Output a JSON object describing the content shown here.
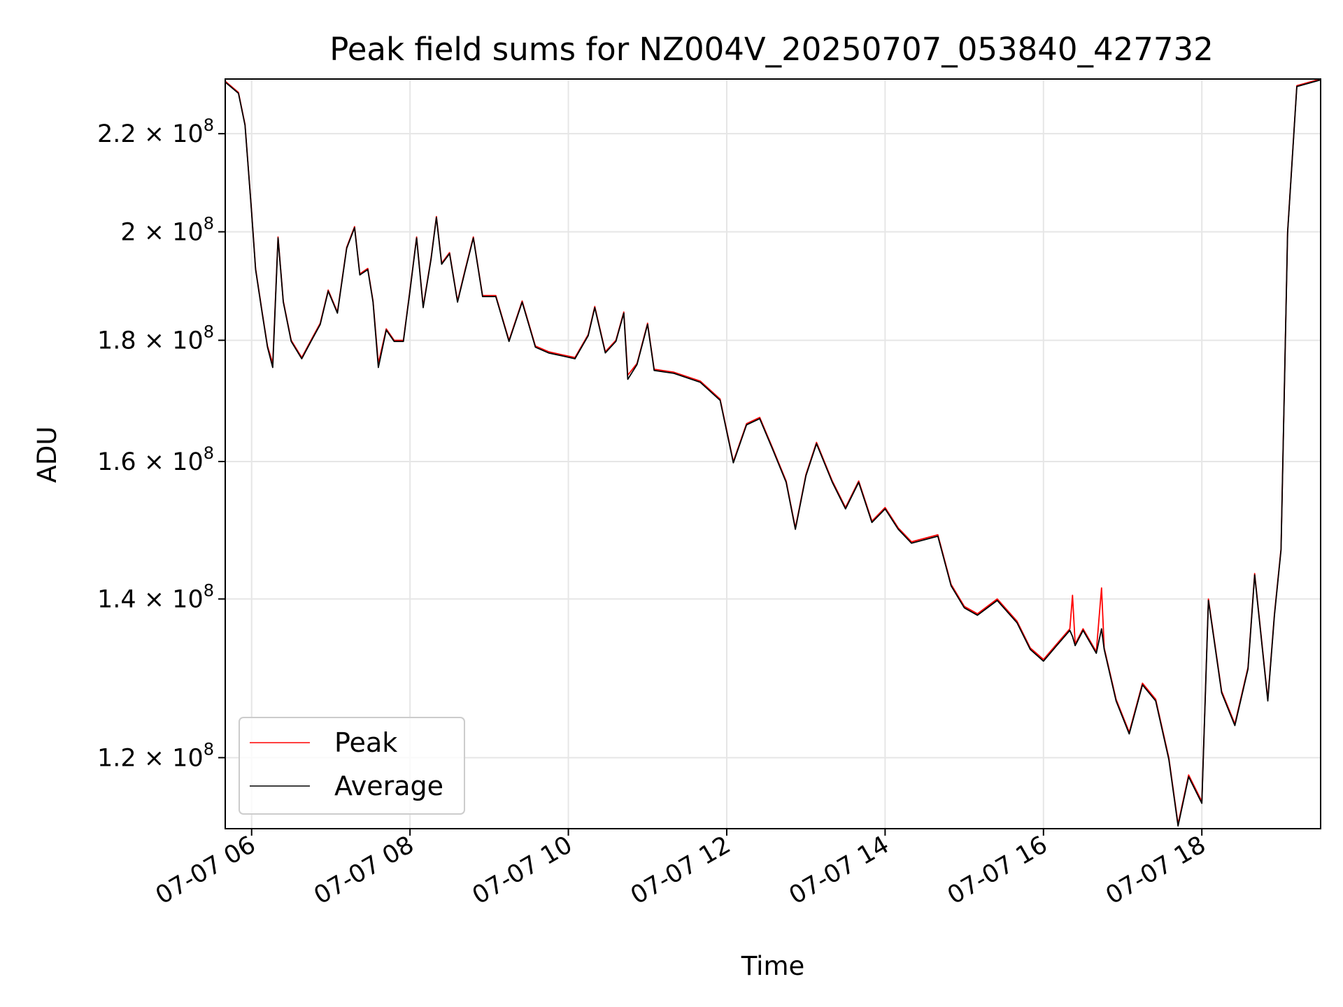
{
  "chart_data": {
    "type": "line",
    "title": "Peak field sums for NZ004V_20250707_053840_427732",
    "xlabel": "Time",
    "ylabel": "ADU",
    "y_scale": "log",
    "xlim": [
      "2025-07-07 05:40",
      "2025-07-07 19:30"
    ],
    "ylim": [
      112000000,
      232000000
    ],
    "x_ticks": [
      {
        "value": "2025-07-07 06:00",
        "label": "07-07 06"
      },
      {
        "value": "2025-07-07 08:00",
        "label": "07-07 08"
      },
      {
        "value": "2025-07-07 10:00",
        "label": "07-07 10"
      },
      {
        "value": "2025-07-07 12:00",
        "label": "07-07 12"
      },
      {
        "value": "2025-07-07 14:00",
        "label": "07-07 14"
      },
      {
        "value": "2025-07-07 16:00",
        "label": "07-07 16"
      },
      {
        "value": "2025-07-07 18:00",
        "label": "07-07 18"
      }
    ],
    "y_ticks": [
      {
        "value": 120000000,
        "mantissa": "1.2",
        "base": "10",
        "exp": "8"
      },
      {
        "value": 140000000,
        "mantissa": "1.4",
        "base": "10",
        "exp": "8"
      },
      {
        "value": 160000000,
        "mantissa": "1.6",
        "base": "10",
        "exp": "8"
      },
      {
        "value": 180000000,
        "mantissa": "1.8",
        "base": "10",
        "exp": "8"
      },
      {
        "value": 200000000,
        "mantissa": "2",
        "base": "10",
        "exp": "8"
      },
      {
        "value": 220000000,
        "mantissa": "2.2",
        "base": "10",
        "exp": "8"
      }
    ],
    "grid": true,
    "legend_position": "lower-left",
    "series": [
      {
        "name": "Peak",
        "color": "#ff0000",
        "points": [
          [
            "2025-07-07 05:40",
            231500000
          ],
          [
            "2025-07-07 05:50",
            229000000
          ],
          [
            "2025-07-07 05:55",
            222000000
          ],
          [
            "2025-07-07 06:00",
            204000000
          ],
          [
            "2025-07-07 06:03",
            193000000
          ],
          [
            "2025-07-07 06:08",
            185000000
          ],
          [
            "2025-07-07 06:12",
            179000000
          ],
          [
            "2025-07-07 06:16",
            176000000
          ],
          [
            "2025-07-07 06:20",
            199000000
          ],
          [
            "2025-07-07 06:24",
            187000000
          ],
          [
            "2025-07-07 06:30",
            180000000
          ],
          [
            "2025-07-07 06:38",
            177000000
          ],
          [
            "2025-07-07 06:45",
            180000000
          ],
          [
            "2025-07-07 06:52",
            183000000
          ],
          [
            "2025-07-07 06:58",
            189000000
          ],
          [
            "2025-07-07 07:05",
            185000000
          ],
          [
            "2025-07-07 07:12",
            197000000
          ],
          [
            "2025-07-07 07:18",
            201000000
          ],
          [
            "2025-07-07 07:22",
            192000000
          ],
          [
            "2025-07-07 07:28",
            193000000
          ],
          [
            "2025-07-07 07:32",
            187000000
          ],
          [
            "2025-07-07 07:36",
            176000000
          ],
          [
            "2025-07-07 07:42",
            182000000
          ],
          [
            "2025-07-07 07:48",
            180000000
          ],
          [
            "2025-07-07 07:55",
            180000000
          ],
          [
            "2025-07-07 08:00",
            189000000
          ],
          [
            "2025-07-07 08:05",
            199000000
          ],
          [
            "2025-07-07 08:10",
            186000000
          ],
          [
            "2025-07-07 08:16",
            195000000
          ],
          [
            "2025-07-07 08:20",
            203000000
          ],
          [
            "2025-07-07 08:24",
            194000000
          ],
          [
            "2025-07-07 08:30",
            196000000
          ],
          [
            "2025-07-07 08:36",
            187000000
          ],
          [
            "2025-07-07 08:42",
            193000000
          ],
          [
            "2025-07-07 08:48",
            199000000
          ],
          [
            "2025-07-07 08:55",
            188000000
          ],
          [
            "2025-07-07 09:05",
            188000000
          ],
          [
            "2025-07-07 09:15",
            180000000
          ],
          [
            "2025-07-07 09:25",
            187000000
          ],
          [
            "2025-07-07 09:35",
            179000000
          ],
          [
            "2025-07-07 09:45",
            178000000
          ],
          [
            "2025-07-07 09:55",
            177500000
          ],
          [
            "2025-07-07 10:05",
            177000000
          ],
          [
            "2025-07-07 10:15",
            181000000
          ],
          [
            "2025-07-07 10:20",
            186000000
          ],
          [
            "2025-07-07 10:28",
            178000000
          ],
          [
            "2025-07-07 10:36",
            180000000
          ],
          [
            "2025-07-07 10:42",
            185000000
          ],
          [
            "2025-07-07 10:45",
            174000000
          ],
          [
            "2025-07-07 10:52",
            176000000
          ],
          [
            "2025-07-07 11:00",
            183000000
          ],
          [
            "2025-07-07 11:05",
            175000000
          ],
          [
            "2025-07-07 11:20",
            174500000
          ],
          [
            "2025-07-07 11:40",
            173000000
          ],
          [
            "2025-07-07 11:55",
            170000000
          ],
          [
            "2025-07-07 12:05",
            160000000
          ],
          [
            "2025-07-07 12:15",
            166000000
          ],
          [
            "2025-07-07 12:25",
            167000000
          ],
          [
            "2025-07-07 12:35",
            162000000
          ],
          [
            "2025-07-07 12:45",
            157000000
          ],
          [
            "2025-07-07 12:52",
            150000000
          ],
          [
            "2025-07-07 13:00",
            158000000
          ],
          [
            "2025-07-07 13:08",
            163000000
          ],
          [
            "2025-07-07 13:20",
            157000000
          ],
          [
            "2025-07-07 13:30",
            153000000
          ],
          [
            "2025-07-07 13:40",
            157000000
          ],
          [
            "2025-07-07 13:50",
            151000000
          ],
          [
            "2025-07-07 14:00",
            153000000
          ],
          [
            "2025-07-07 14:10",
            150000000
          ],
          [
            "2025-07-07 14:20",
            148000000
          ],
          [
            "2025-07-07 14:30",
            148500000
          ],
          [
            "2025-07-07 14:40",
            149000000
          ],
          [
            "2025-07-07 14:50",
            142000000
          ],
          [
            "2025-07-07 15:00",
            139000000
          ],
          [
            "2025-07-07 15:10",
            138000000
          ],
          [
            "2025-07-07 15:25",
            140000000
          ],
          [
            "2025-07-07 15:40",
            137000000
          ],
          [
            "2025-07-07 15:50",
            133500000
          ],
          [
            "2025-07-07 16:00",
            132000000
          ],
          [
            "2025-07-07 16:10",
            134000000
          ],
          [
            "2025-07-07 16:20",
            136000000
          ],
          [
            "2025-07-07 16:22",
            140500000
          ],
          [
            "2025-07-07 16:24",
            134000000
          ],
          [
            "2025-07-07 16:30",
            136000000
          ],
          [
            "2025-07-07 16:40",
            133000000
          ],
          [
            "2025-07-07 16:44",
            141500000
          ],
          [
            "2025-07-07 16:46",
            133500000
          ],
          [
            "2025-07-07 16:55",
            127000000
          ],
          [
            "2025-07-07 17:05",
            123000000
          ],
          [
            "2025-07-07 17:15",
            129000000
          ],
          [
            "2025-07-07 17:25",
            127000000
          ],
          [
            "2025-07-07 17:35",
            120000000
          ],
          [
            "2025-07-07 17:42",
            112500000
          ],
          [
            "2025-07-07 17:50",
            118000000
          ],
          [
            "2025-07-07 18:00",
            115000000
          ],
          [
            "2025-07-07 18:05",
            140000000
          ],
          [
            "2025-07-07 18:15",
            128000000
          ],
          [
            "2025-07-07 18:25",
            124000000
          ],
          [
            "2025-07-07 18:35",
            131000000
          ],
          [
            "2025-07-07 18:40",
            143500000
          ],
          [
            "2025-07-07 18:50",
            127000000
          ],
          [
            "2025-07-07 18:55",
            138000000
          ],
          [
            "2025-07-07 19:00",
            147000000
          ],
          [
            "2025-07-07 19:05",
            200000000
          ],
          [
            "2025-07-07 19:12",
            230500000
          ],
          [
            "2025-07-07 19:30",
            232000000
          ]
        ]
      },
      {
        "name": "Average",
        "color": "#000000",
        "points": [
          [
            "2025-07-07 05:40",
            231300000
          ],
          [
            "2025-07-07 05:50",
            228800000
          ],
          [
            "2025-07-07 05:55",
            221800000
          ],
          [
            "2025-07-07 06:00",
            203800000
          ],
          [
            "2025-07-07 06:03",
            192800000
          ],
          [
            "2025-07-07 06:08",
            184800000
          ],
          [
            "2025-07-07 06:12",
            178800000
          ],
          [
            "2025-07-07 06:16",
            175300000
          ],
          [
            "2025-07-07 06:20",
            198800000
          ],
          [
            "2025-07-07 06:24",
            186800000
          ],
          [
            "2025-07-07 06:30",
            179800000
          ],
          [
            "2025-07-07 06:38",
            176800000
          ],
          [
            "2025-07-07 06:45",
            179800000
          ],
          [
            "2025-07-07 06:52",
            182800000
          ],
          [
            "2025-07-07 06:58",
            188800000
          ],
          [
            "2025-07-07 07:05",
            184800000
          ],
          [
            "2025-07-07 07:12",
            196800000
          ],
          [
            "2025-07-07 07:18",
            200800000
          ],
          [
            "2025-07-07 07:22",
            191800000
          ],
          [
            "2025-07-07 07:28",
            192800000
          ],
          [
            "2025-07-07 07:32",
            186800000
          ],
          [
            "2025-07-07 07:36",
            175300000
          ],
          [
            "2025-07-07 07:42",
            181800000
          ],
          [
            "2025-07-07 07:48",
            179800000
          ],
          [
            "2025-07-07 07:55",
            179800000
          ],
          [
            "2025-07-07 08:00",
            188800000
          ],
          [
            "2025-07-07 08:05",
            198800000
          ],
          [
            "2025-07-07 08:10",
            185800000
          ],
          [
            "2025-07-07 08:16",
            194800000
          ],
          [
            "2025-07-07 08:20",
            202800000
          ],
          [
            "2025-07-07 08:24",
            193800000
          ],
          [
            "2025-07-07 08:30",
            195800000
          ],
          [
            "2025-07-07 08:36",
            186800000
          ],
          [
            "2025-07-07 08:42",
            192800000
          ],
          [
            "2025-07-07 08:48",
            198800000
          ],
          [
            "2025-07-07 08:55",
            187800000
          ],
          [
            "2025-07-07 09:05",
            187800000
          ],
          [
            "2025-07-07 09:15",
            179800000
          ],
          [
            "2025-07-07 09:25",
            186800000
          ],
          [
            "2025-07-07 09:35",
            178800000
          ],
          [
            "2025-07-07 09:45",
            177800000
          ],
          [
            "2025-07-07 09:55",
            177300000
          ],
          [
            "2025-07-07 10:05",
            176800000
          ],
          [
            "2025-07-07 10:15",
            180800000
          ],
          [
            "2025-07-07 10:20",
            185800000
          ],
          [
            "2025-07-07 10:28",
            177800000
          ],
          [
            "2025-07-07 10:36",
            179800000
          ],
          [
            "2025-07-07 10:42",
            184800000
          ],
          [
            "2025-07-07 10:45",
            173300000
          ],
          [
            "2025-07-07 10:52",
            175800000
          ],
          [
            "2025-07-07 11:00",
            182800000
          ],
          [
            "2025-07-07 11:05",
            174800000
          ],
          [
            "2025-07-07 11:20",
            174300000
          ],
          [
            "2025-07-07 11:40",
            172800000
          ],
          [
            "2025-07-07 11:55",
            169800000
          ],
          [
            "2025-07-07 12:05",
            159800000
          ],
          [
            "2025-07-07 12:15",
            165800000
          ],
          [
            "2025-07-07 12:25",
            166800000
          ],
          [
            "2025-07-07 12:35",
            161800000
          ],
          [
            "2025-07-07 12:45",
            156800000
          ],
          [
            "2025-07-07 12:52",
            149800000
          ],
          [
            "2025-07-07 13:00",
            157800000
          ],
          [
            "2025-07-07 13:08",
            162800000
          ],
          [
            "2025-07-07 13:20",
            156800000
          ],
          [
            "2025-07-07 13:30",
            152800000
          ],
          [
            "2025-07-07 13:40",
            156800000
          ],
          [
            "2025-07-07 13:50",
            150800000
          ],
          [
            "2025-07-07 14:00",
            152800000
          ],
          [
            "2025-07-07 14:10",
            149800000
          ],
          [
            "2025-07-07 14:20",
            147800000
          ],
          [
            "2025-07-07 14:30",
            148300000
          ],
          [
            "2025-07-07 14:40",
            148800000
          ],
          [
            "2025-07-07 14:50",
            141800000
          ],
          [
            "2025-07-07 15:00",
            138800000
          ],
          [
            "2025-07-07 15:10",
            137800000
          ],
          [
            "2025-07-07 15:25",
            139800000
          ],
          [
            "2025-07-07 15:40",
            136800000
          ],
          [
            "2025-07-07 15:50",
            133300000
          ],
          [
            "2025-07-07 16:00",
            131800000
          ],
          [
            "2025-07-07 16:10",
            133800000
          ],
          [
            "2025-07-07 16:20",
            135800000
          ],
          [
            "2025-07-07 16:22",
            135000000
          ],
          [
            "2025-07-07 16:24",
            133800000
          ],
          [
            "2025-07-07 16:30",
            135800000
          ],
          [
            "2025-07-07 16:40",
            132800000
          ],
          [
            "2025-07-07 16:44",
            136000000
          ],
          [
            "2025-07-07 16:46",
            133300000
          ],
          [
            "2025-07-07 16:55",
            126800000
          ],
          [
            "2025-07-07 17:05",
            122800000
          ],
          [
            "2025-07-07 17:15",
            128800000
          ],
          [
            "2025-07-07 17:25",
            126800000
          ],
          [
            "2025-07-07 17:35",
            119800000
          ],
          [
            "2025-07-07 17:42",
            112300000
          ],
          [
            "2025-07-07 17:50",
            117800000
          ],
          [
            "2025-07-07 18:00",
            114800000
          ],
          [
            "2025-07-07 18:05",
            139800000
          ],
          [
            "2025-07-07 18:15",
            127800000
          ],
          [
            "2025-07-07 18:25",
            123800000
          ],
          [
            "2025-07-07 18:35",
            130800000
          ],
          [
            "2025-07-07 18:40",
            143300000
          ],
          [
            "2025-07-07 18:50",
            126800000
          ],
          [
            "2025-07-07 18:55",
            137800000
          ],
          [
            "2025-07-07 19:00",
            146800000
          ],
          [
            "2025-07-07 19:05",
            199800000
          ],
          [
            "2025-07-07 19:12",
            230300000
          ],
          [
            "2025-07-07 19:30",
            231800000
          ]
        ]
      }
    ]
  }
}
